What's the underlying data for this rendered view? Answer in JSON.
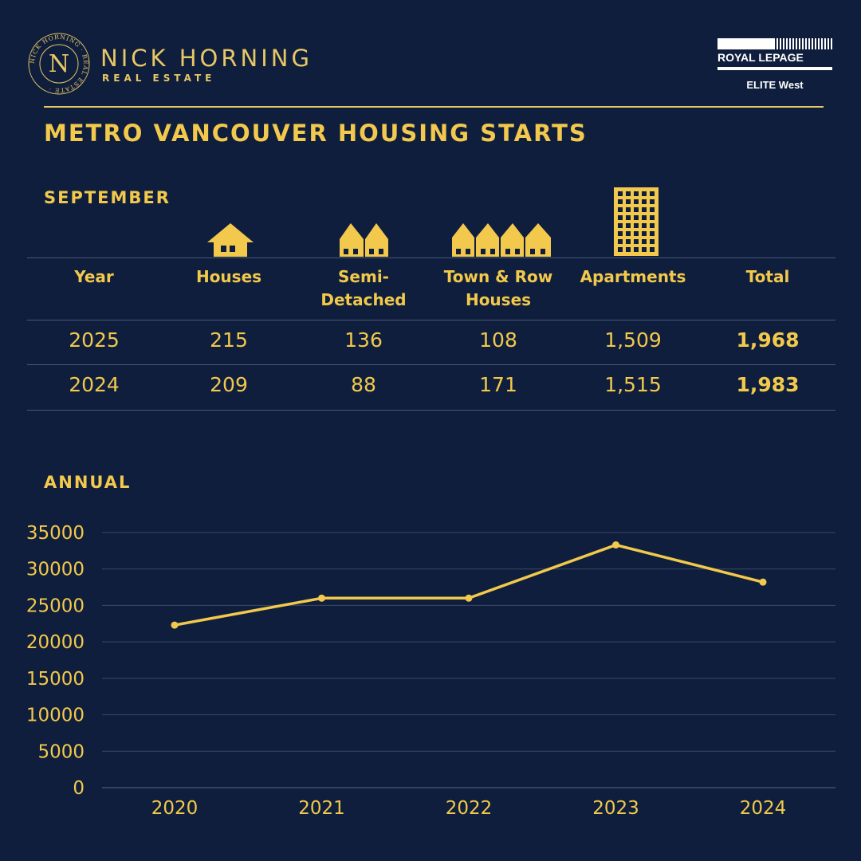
{
  "header": {
    "brand_name": "NICK HORNING",
    "brand_sub": "REAL ESTATE",
    "seal_text": "NICK HORNING · REAL ESTATE ·",
    "partner_name": "ROYAL LEPAGE",
    "partner_sub": "ELITE West"
  },
  "title": "METRO VANCOUVER HOUSING STARTS",
  "monthly": {
    "section": "SEPTEMBER",
    "columns": [
      {
        "label": "Year",
        "icon": ""
      },
      {
        "label": "Houses",
        "icon": "house-icon"
      },
      {
        "label": "Semi-\nDetached",
        "icon": "semi-detached-icon"
      },
      {
        "label": "Town & Row\nHouses",
        "icon": "townhouse-icon"
      },
      {
        "label": "Apartments",
        "icon": "apartment-building-icon"
      },
      {
        "label": "Total",
        "icon": ""
      }
    ],
    "rows": [
      [
        "2025",
        "215",
        "136",
        "108",
        "1,509",
        "1,968"
      ],
      [
        "2024",
        "209",
        "88",
        "171",
        "1,515",
        "1,983"
      ]
    ]
  },
  "annual": {
    "section": "ANNUAL"
  },
  "chart_data": {
    "type": "line",
    "title": "ANNUAL",
    "x": [
      "2020",
      "2021",
      "2022",
      "2023",
      "2024"
    ],
    "series": [
      {
        "values": [
          22300,
          26000,
          26000,
          33300,
          28200
        ]
      }
    ],
    "ylim": [
      0,
      35000
    ],
    "yticks": [
      0,
      5000,
      10000,
      15000,
      20000,
      25000,
      30000,
      35000
    ],
    "grid": true,
    "xlabel": "",
    "ylabel": "",
    "colors": {
      "line": "#f2c94c",
      "grid": "#3a4868",
      "background": "#0f1e3c"
    }
  }
}
